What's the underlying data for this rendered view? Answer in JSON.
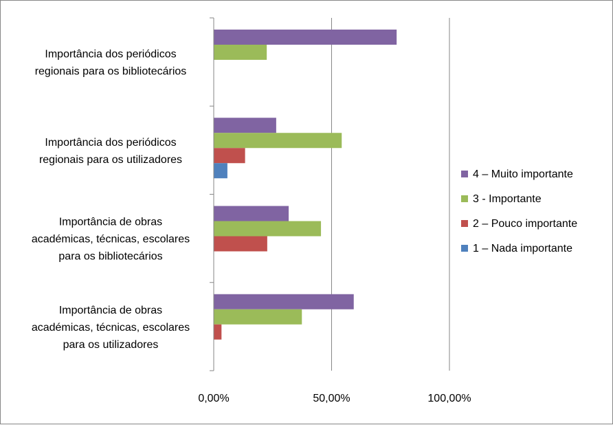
{
  "chart_data": {
    "type": "bar",
    "orientation": "horizontal",
    "categories": [
      [
        "Importância dos periódicos",
        "regionais para os bibliotecários"
      ],
      [
        "Importância dos periódicos",
        "regionais para os utilizadores"
      ],
      [
        "Importância de obras",
        "académicas, técnicas, escolares",
        "para os bibliotecários"
      ],
      [
        "Importância de obras",
        "académicas, técnicas, escolares",
        "para os utilizadores"
      ]
    ],
    "series": [
      {
        "name": "4 – Muito importante",
        "color": "#8064A2",
        "values": [
          0.776,
          0.265,
          0.318,
          0.594
        ]
      },
      {
        "name": "3 - Importante",
        "color": "#9BBB59",
        "values": [
          0.225,
          0.543,
          0.455,
          0.374
        ]
      },
      {
        "name": "2 – Pouco importante",
        "color": "#C0504D",
        "values": [
          0,
          0.133,
          0.227,
          0.033
        ]
      },
      {
        "name": "1 – Nada importante",
        "color": "#4F81BD",
        "values": [
          0,
          0.058,
          0,
          0
        ]
      }
    ],
    "xlim": [
      0,
      1
    ],
    "x_ticks": [
      {
        "value": 0,
        "label": "0,00%"
      },
      {
        "value": 0.5,
        "label": "50,00%"
      },
      {
        "value": 1,
        "label": "100,00%"
      }
    ],
    "gridlines": "vertical",
    "legend_position": "right",
    "title": "",
    "xlabel": "",
    "ylabel": ""
  }
}
